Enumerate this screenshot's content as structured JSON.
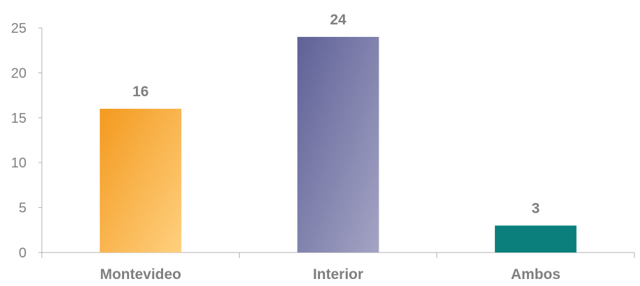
{
  "chart_data": {
    "type": "bar",
    "categories": [
      "Montevideo",
      "Interior",
      "Ambos"
    ],
    "values": [
      16,
      24,
      3
    ],
    "data_labels": [
      "16",
      "24",
      "3"
    ],
    "y_ticks": [
      "0",
      "5",
      "10",
      "15",
      "20",
      "25"
    ],
    "ylim": [
      0,
      25
    ],
    "grid": false,
    "legend": "none",
    "colors": {
      "Montevideo": [
        "#f39a1f",
        "#ffd07f"
      ],
      "Interior": [
        "#5f6197",
        "#a4a4c4"
      ],
      "Ambos": [
        "#0a7f7b",
        "#0a7f7b"
      ],
      "axis": "#b0b0b0",
      "text": "#7f7f7f"
    }
  }
}
